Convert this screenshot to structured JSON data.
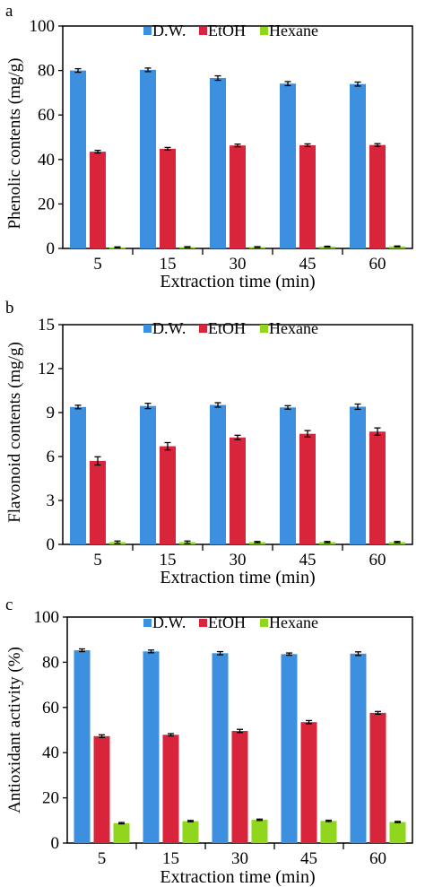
{
  "colors": {
    "dw": "#3d8fe0",
    "etoh": "#d9253c",
    "hexane": "#8fd61c"
  },
  "chart_data": [
    {
      "panel_label": "a",
      "type": "bar",
      "ylabel": "Phenolic contents (mg/g)",
      "xlabel": "Extraction time (min)",
      "ylim": [
        0,
        100
      ],
      "yticks": [
        "0",
        "20",
        "40",
        "60",
        "80",
        "100"
      ],
      "categories": [
        "5",
        "15",
        "30",
        "45",
        "60"
      ],
      "legend_position": "top",
      "series": [
        {
          "name": "D.W.",
          "values": [
            80.0,
            80.3,
            76.6,
            74.1,
            73.9
          ],
          "errors": [
            0.8,
            0.8,
            1.0,
            0.9,
            0.9
          ]
        },
        {
          "name": "EtOH",
          "values": [
            43.5,
            44.8,
            46.3,
            46.4,
            46.5
          ],
          "errors": [
            0.6,
            0.6,
            0.6,
            0.6,
            0.6
          ]
        },
        {
          "name": "Hexane",
          "values": [
            0.5,
            0.6,
            0.6,
            0.8,
            0.9
          ],
          "errors": [
            0.2,
            0.2,
            0.2,
            0.2,
            0.2
          ]
        }
      ]
    },
    {
      "panel_label": "b",
      "type": "bar",
      "ylabel": "Flavonoid contents (mg/g)",
      "xlabel": "Extraction time (min)",
      "ylim": [
        0,
        15
      ],
      "yticks": [
        "0",
        "3",
        "6",
        "9",
        "12",
        "15"
      ],
      "categories": [
        "5",
        "15",
        "30",
        "45",
        "60"
      ],
      "legend_position": "top",
      "series": [
        {
          "name": "D.W.",
          "values": [
            9.38,
            9.45,
            9.52,
            9.35,
            9.4
          ],
          "errors": [
            0.12,
            0.18,
            0.15,
            0.12,
            0.18
          ]
        },
        {
          "name": "EtOH",
          "values": [
            5.7,
            6.7,
            7.3,
            7.55,
            7.7
          ],
          "errors": [
            0.28,
            0.25,
            0.15,
            0.22,
            0.25
          ]
        },
        {
          "name": "Hexane",
          "values": [
            0.15,
            0.15,
            0.15,
            0.15,
            0.15
          ],
          "errors": [
            0.08,
            0.08,
            0.05,
            0.05,
            0.05
          ]
        }
      ]
    },
    {
      "panel_label": "c",
      "type": "bar",
      "ylabel": "Antioxidant activity (%)",
      "xlabel": "Extraction time (min)",
      "ylim": [
        0,
        100
      ],
      "yticks": [
        "0",
        "20",
        "40",
        "60",
        "80",
        "100"
      ],
      "categories": [
        "5",
        "15",
        "30",
        "45",
        "60"
      ],
      "legend_position": "top",
      "series": [
        {
          "name": "D.W.",
          "values": [
            85.3,
            84.8,
            84.0,
            83.6,
            83.8
          ],
          "errors": [
            0.6,
            0.6,
            0.7,
            0.5,
            0.8
          ]
        },
        {
          "name": "EtOH",
          "values": [
            47.3,
            47.9,
            49.6,
            53.5,
            57.6
          ],
          "errors": [
            0.6,
            0.5,
            0.7,
            0.7,
            0.6
          ]
        },
        {
          "name": "Hexane",
          "values": [
            8.8,
            9.7,
            10.3,
            9.8,
            9.3
          ],
          "errors": [
            0.3,
            0.3,
            0.3,
            0.3,
            0.3
          ]
        }
      ]
    }
  ]
}
